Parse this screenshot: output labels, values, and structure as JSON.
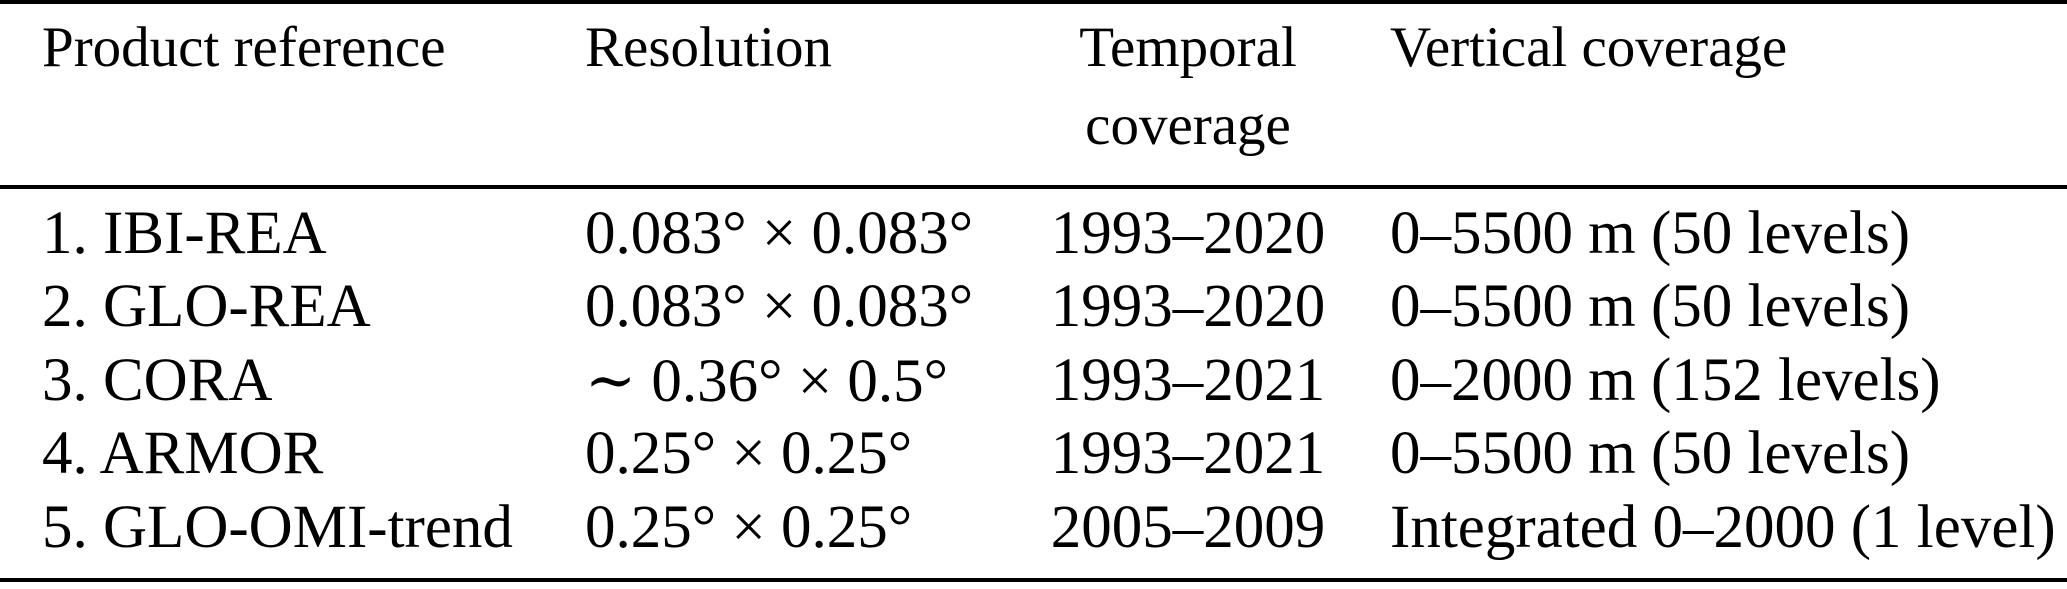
{
  "page": {
    "background_color": "#ffffff",
    "text_color": "#000000",
    "rule_color": "#000000"
  },
  "table": {
    "headers": {
      "product": "Product reference",
      "resolution": "Resolution",
      "temporal": "Temporal coverage",
      "vertical": "Vertical coverage"
    },
    "rows": [
      {
        "product": "1. IBI-REA",
        "resolution": "0.083° × 0.083°",
        "temporal": "1993–2020",
        "vertical": "0–5500 m (50 levels)"
      },
      {
        "product": "2. GLO-REA",
        "resolution": "0.083° × 0.083°",
        "temporal": "1993–2020",
        "vertical": "0–5500 m (50 levels)"
      },
      {
        "product": "3. CORA",
        "resolution": "∼ 0.36° × 0.5°",
        "temporal": "1993–2021",
        "vertical": "0–2000 m (152 levels)"
      },
      {
        "product": "4. ARMOR",
        "resolution": "0.25° × 0.25°",
        "temporal": "1993–2021",
        "vertical": "0–5500 m (50 levels)"
      },
      {
        "product": "5. GLO-OMI-trend",
        "resolution": "0.25° × 0.25°",
        "temporal": "2005–2009",
        "vertical": "Integrated 0–2000 (1 level)"
      }
    ]
  }
}
